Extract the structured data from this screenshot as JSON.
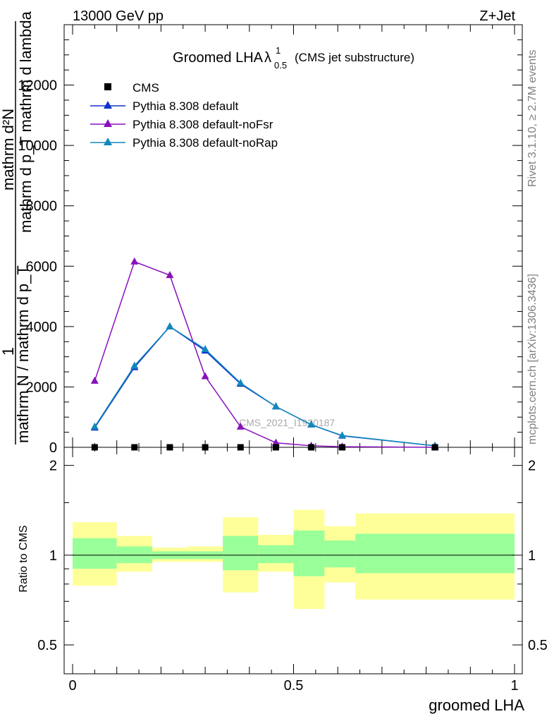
{
  "header": {
    "left": "13000 GeV pp",
    "right": "Z+Jet"
  },
  "title": {
    "main": "Groomed LHA",
    "lambda": "λ",
    "sup": "1",
    "sub": "0.5",
    "note": "(CMS jet substructure)"
  },
  "side_text": {
    "rivet": "Rivet 3.1.10, ≥ 2.7M events",
    "mcplots": "mcplots.cern.ch [arXiv:1306.3436]"
  },
  "watermark": "CMS_2021_I1920187",
  "main_ylabel": {
    "one": "1",
    "num": "mathrm d",
    "numsup": "2",
    "numN": "N",
    "den": "mathrm N / mathrm d p",
    "densub": "T",
    "den2": " mathrm d p",
    "den2sub": "T",
    "den3": " mathrm d lambda",
    "full_top": "mathrm d²N",
    "full_mid": "mathrm d p_T mathrm d lambda",
    "full_bottom": "mathrm N / mathrm d p_T"
  },
  "ratio_ylabel": "Ratio to CMS",
  "xlabel": "groomed LHA",
  "colors": {
    "cms": "#000000",
    "default": "#1133cc",
    "noFsr": "#8811bb",
    "noRap": "#1188bb",
    "band_inner": "#99ff99",
    "band_outer": "#ffff99"
  },
  "chart_data": {
    "type": "line",
    "title": "Groomed LHA λ^1_0.5 (CMS jet substructure)",
    "xlabel": "groomed LHA",
    "xlim": [
      0,
      1
    ],
    "main": {
      "ylim": [
        0,
        14000
      ],
      "yticks": [
        {
          "v": 2000,
          "label": "2000"
        },
        {
          "v": 4000,
          "label": "4000"
        },
        {
          "v": 6000,
          "label": "6000"
        },
        {
          "v": 8000,
          "label": "8000"
        },
        {
          "v": 10000,
          "label": "10000"
        },
        {
          "v": 12000,
          "label": "12000"
        }
      ],
      "yzero_label": "0",
      "series": [
        {
          "name": "CMS",
          "key": "cms",
          "marker": "square",
          "x": [
            0.05,
            0.14,
            0.22,
            0.3,
            0.38,
            0.46,
            0.54,
            0.61,
            0.82
          ],
          "y": [
            0,
            0,
            0,
            0,
            0,
            0,
            0,
            0,
            0
          ]
        },
        {
          "name": "Pythia 8.308 default",
          "key": "default",
          "marker": "triangle",
          "x": [
            0.05,
            0.14,
            0.22,
            0.3,
            0.38,
            0.46,
            0.54,
            0.61,
            0.82
          ],
          "y": [
            650,
            2650,
            4000,
            3200,
            2100,
            1350,
            750,
            380,
            50
          ]
        },
        {
          "name": "Pythia 8.308 default-noFsr",
          "key": "noFsr",
          "marker": "triangle",
          "x": [
            0.05,
            0.14,
            0.22,
            0.3,
            0.38,
            0.46,
            0.54,
            0.61,
            0.82
          ],
          "y": [
            2200,
            6150,
            5700,
            2350,
            680,
            150,
            50,
            20,
            0
          ]
        },
        {
          "name": "Pythia 8.308 default-noRap",
          "key": "noRap",
          "marker": "triangle",
          "x": [
            0.05,
            0.14,
            0.22,
            0.3,
            0.38,
            0.46,
            0.54,
            0.61,
            0.82
          ],
          "y": [
            680,
            2700,
            4000,
            3250,
            2130,
            1350,
            750,
            390,
            50
          ]
        }
      ]
    },
    "ratio": {
      "ylim": [
        0.4,
        2.3
      ],
      "log": true,
      "yticks": [
        {
          "v": 0.5,
          "label": "0.5"
        },
        {
          "v": 1,
          "label": "1"
        },
        {
          "v": 2,
          "label": "2"
        }
      ],
      "xticks": [
        {
          "v": 0,
          "label": "0"
        },
        {
          "v": 0.5,
          "label": "0.5"
        },
        {
          "v": 1,
          "label": "1"
        }
      ],
      "bands": [
        {
          "x0": 0.0,
          "x1": 0.1,
          "inner": [
            0.9,
            1.14
          ],
          "outer": [
            0.79,
            1.29
          ]
        },
        {
          "x0": 0.1,
          "x1": 0.18,
          "inner": [
            0.94,
            1.07
          ],
          "outer": [
            0.88,
            1.16
          ]
        },
        {
          "x0": 0.18,
          "x1": 0.26,
          "inner": [
            0.97,
            1.03
          ],
          "outer": [
            0.95,
            1.06
          ]
        },
        {
          "x0": 0.26,
          "x1": 0.34,
          "inner": [
            0.97,
            1.03
          ],
          "outer": [
            0.95,
            1.07
          ]
        },
        {
          "x0": 0.34,
          "x1": 0.42,
          "inner": [
            0.89,
            1.16
          ],
          "outer": [
            0.75,
            1.34
          ]
        },
        {
          "x0": 0.42,
          "x1": 0.5,
          "inner": [
            0.94,
            1.08
          ],
          "outer": [
            0.88,
            1.17
          ]
        },
        {
          "x0": 0.5,
          "x1": 0.57,
          "inner": [
            0.85,
            1.21
          ],
          "outer": [
            0.66,
            1.42
          ]
        },
        {
          "x0": 0.57,
          "x1": 0.64,
          "inner": [
            0.91,
            1.12
          ],
          "outer": [
            0.81,
            1.25
          ]
        },
        {
          "x0": 0.64,
          "x1": 1.0,
          "inner": [
            0.87,
            1.18
          ],
          "outer": [
            0.71,
            1.38
          ]
        }
      ]
    }
  }
}
